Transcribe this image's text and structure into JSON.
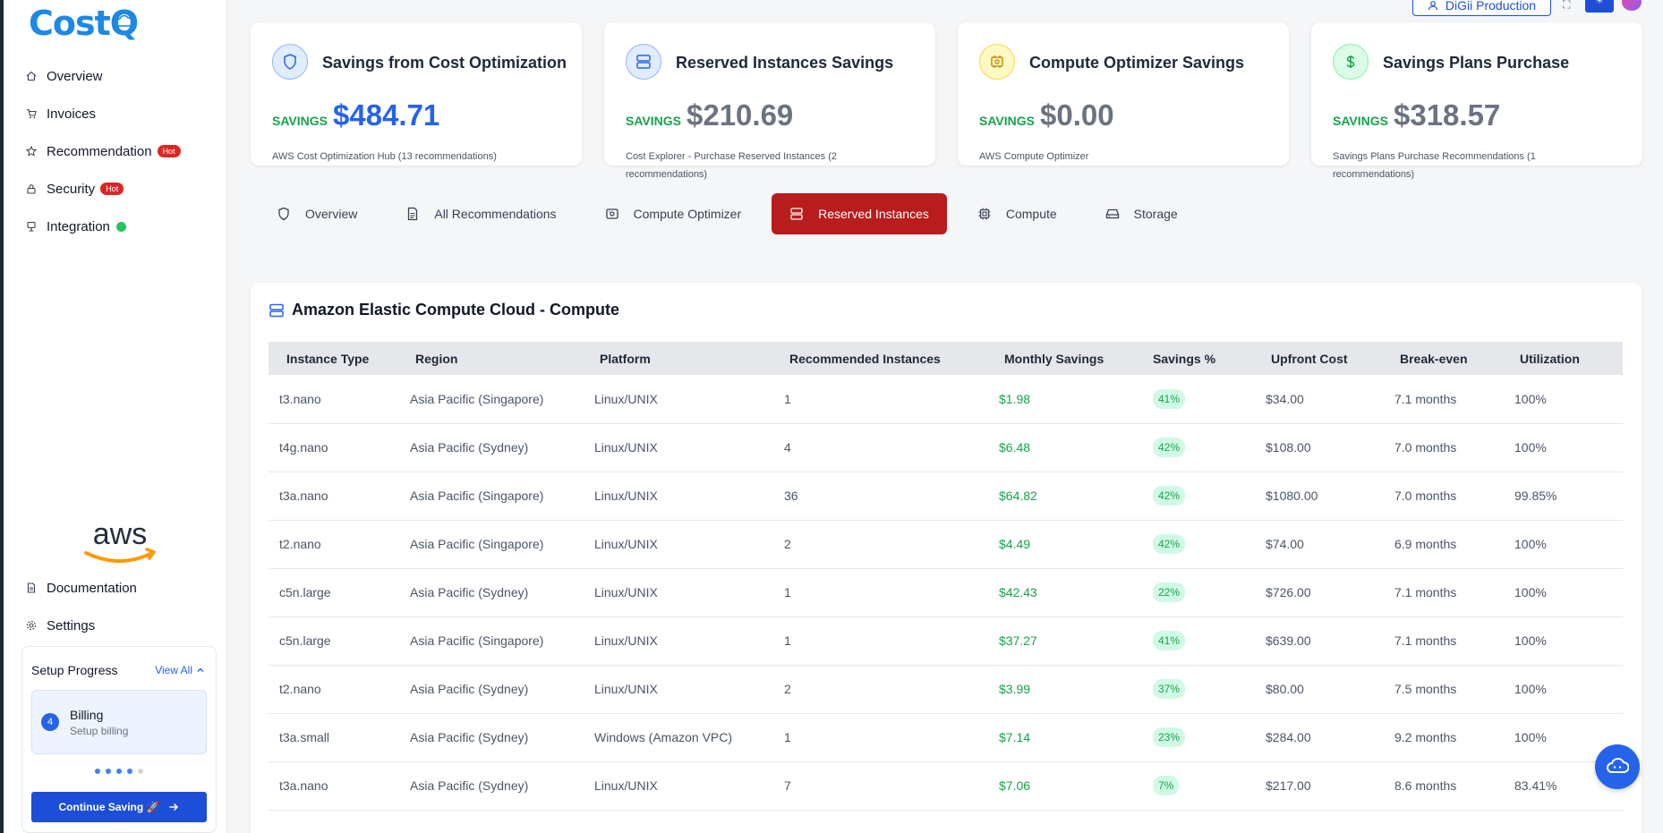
{
  "app": {
    "logo_text": "CostQ"
  },
  "sidebar": {
    "items": [
      {
        "label": "Overview",
        "icon": "home-icon"
      },
      {
        "label": "Invoices",
        "icon": "cart-icon"
      },
      {
        "label": "Recommendation",
        "icon": "star-icon",
        "badge": "Hot"
      },
      {
        "label": "Security",
        "icon": "lock-icon",
        "badge": "Hot"
      },
      {
        "label": "Integration",
        "icon": "plug-icon",
        "status": "online"
      }
    ],
    "bottom_items": [
      {
        "label": "Documentation",
        "icon": "document-icon"
      },
      {
        "label": "Settings",
        "icon": "gear-icon"
      }
    ],
    "setup": {
      "title": "Setup Progress",
      "view_all": "View All",
      "step_number": "4",
      "step_title": "Billing",
      "step_subtitle": "Setup billing",
      "continue_label": "Continue Saving 🚀"
    }
  },
  "header": {
    "account_label": "DiGii Production"
  },
  "cards": [
    {
      "title": "Savings from Cost Optimization",
      "savings_label": "SAVINGS",
      "value": "$484.71",
      "description": "AWS Cost Optimization Hub (13 recommendations)",
      "icon": "shield-icon",
      "accent": "#2563eb"
    },
    {
      "title": "Reserved Instances Savings",
      "savings_label": "SAVINGS",
      "value": "$210.69",
      "description": "Cost Explorer - Purchase Reserved Instances (2 recommendations)",
      "icon": "server-icon",
      "accent": "#2563eb"
    },
    {
      "title": "Compute Optimizer Savings",
      "savings_label": "SAVINGS",
      "value": "$0.00",
      "description": "AWS Compute Optimizer",
      "icon": "cpu-icon",
      "accent": "#eab308"
    },
    {
      "title": "Savings Plans Purchase",
      "savings_label": "SAVINGS",
      "value": "$318.57",
      "description": "Savings Plans Purchase Recommendations (1 recommendations)",
      "icon": "dollar-icon",
      "accent": "#16a34a"
    }
  ],
  "tabs": [
    {
      "label": "Overview",
      "icon": "shield-icon"
    },
    {
      "label": "All Recommendations",
      "icon": "document-icon"
    },
    {
      "label": "Compute Optimizer",
      "icon": "cpu-icon"
    },
    {
      "label": "Reserved Instances",
      "icon": "server-icon",
      "active": true
    },
    {
      "label": "Compute",
      "icon": "chip-icon"
    },
    {
      "label": "Storage",
      "icon": "drive-icon"
    }
  ],
  "panel": {
    "title": "Amazon Elastic Compute Cloud - Compute",
    "columns": [
      "Instance Type",
      "Region",
      "Platform",
      "Recommended Instances",
      "Monthly Savings",
      "Savings %",
      "Upfront Cost",
      "Break-even",
      "Utilization"
    ],
    "rows": [
      [
        "t3.nano",
        "Asia Pacific (Singapore)",
        "Linux/UNIX",
        "1",
        "$1.98",
        "41%",
        "$34.00",
        "7.1 months",
        "100%"
      ],
      [
        "t4g.nano",
        "Asia Pacific (Sydney)",
        "Linux/UNIX",
        "4",
        "$6.48",
        "42%",
        "$108.00",
        "7.0 months",
        "100%"
      ],
      [
        "t3a.nano",
        "Asia Pacific (Singapore)",
        "Linux/UNIX",
        "36",
        "$64.82",
        "42%",
        "$1080.00",
        "7.0 months",
        "99.85%"
      ],
      [
        "t2.nano",
        "Asia Pacific (Singapore)",
        "Linux/UNIX",
        "2",
        "$4.49",
        "42%",
        "$74.00",
        "6.9 months",
        "100%"
      ],
      [
        "c5n.large",
        "Asia Pacific (Sydney)",
        "Linux/UNIX",
        "1",
        "$42.43",
        "22%",
        "$726.00",
        "7.1 months",
        "100%"
      ],
      [
        "c5n.large",
        "Asia Pacific (Singapore)",
        "Linux/UNIX",
        "1",
        "$37.27",
        "41%",
        "$639.00",
        "7.1 months",
        "100%"
      ],
      [
        "t2.nano",
        "Asia Pacific (Sydney)",
        "Linux/UNIX",
        "2",
        "$3.99",
        "37%",
        "$80.00",
        "7.5 months",
        "100%"
      ],
      [
        "t3a.small",
        "Asia Pacific (Sydney)",
        "Windows (Amazon VPC)",
        "1",
        "$7.14",
        "23%",
        "$284.00",
        "9.2 months",
        "100%"
      ],
      [
        "t3a.nano",
        "Asia Pacific (Sydney)",
        "Linux/UNIX",
        "7",
        "$7.06",
        "7%",
        "$217.00",
        "8.6 months",
        "83.41%"
      ]
    ]
  }
}
